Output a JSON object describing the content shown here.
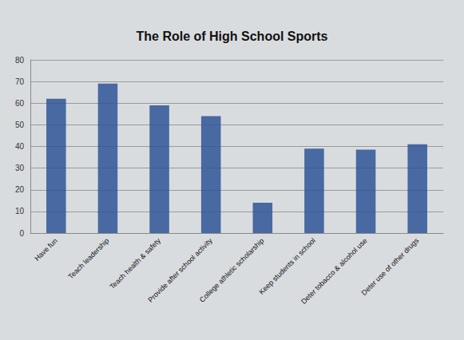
{
  "chart_data": {
    "type": "bar",
    "title": "The Role of High School Sports",
    "categories": [
      "Have fun",
      "Teach leadership",
      "Teach health & safety",
      "Provide after school activity",
      "College athletic scholarship",
      "Keep students in school",
      "Deter tobacco & alcohol use",
      "Deter use of other drugs"
    ],
    "values": [
      62,
      69,
      59,
      54,
      14,
      39,
      38.5,
      41
    ],
    "color": "#2e5597",
    "ylim": [
      0,
      80
    ],
    "yticks": [
      0,
      10,
      20,
      30,
      40,
      50,
      60,
      70,
      80
    ],
    "grid": true
  }
}
